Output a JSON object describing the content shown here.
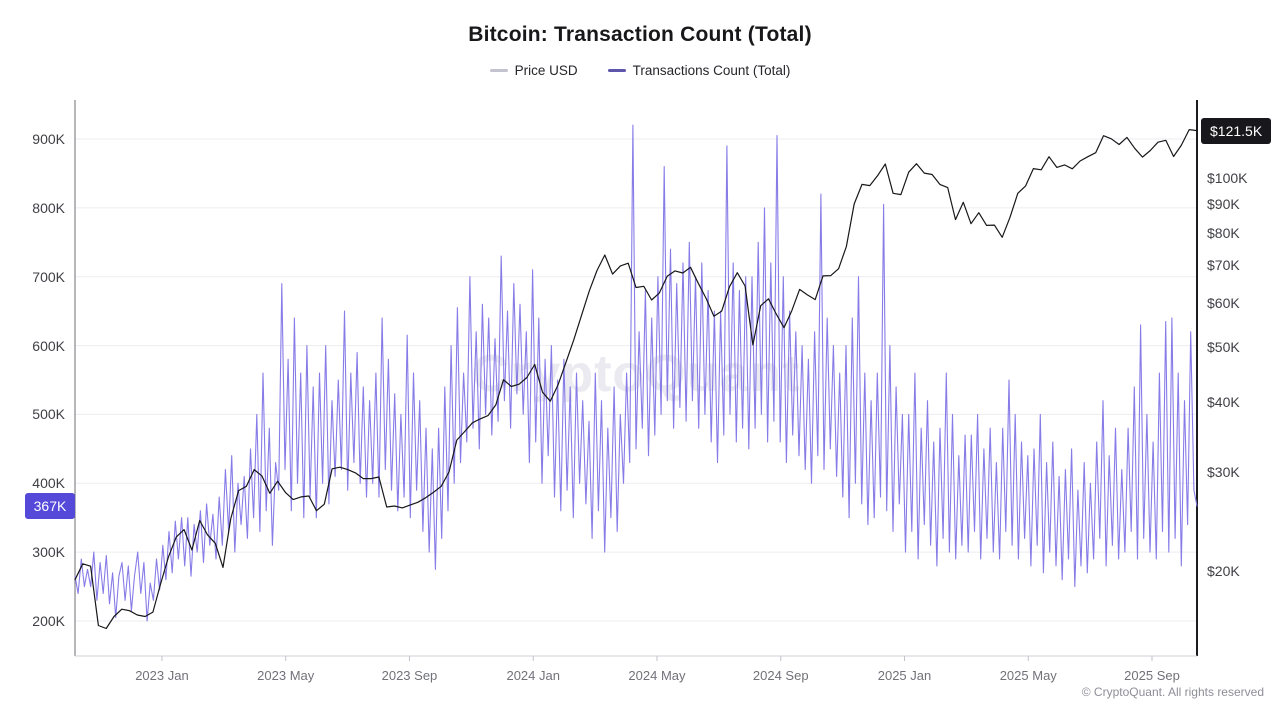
{
  "title": "Bitcoin: Transaction Count (Total)",
  "legend": {
    "items": [
      {
        "label": "Price USD",
        "color": "#c4c3d0"
      },
      {
        "label": "Transactions Count (Total)",
        "color": "#5e56aa"
      }
    ]
  },
  "watermark": "CryptoQuant",
  "footer": {
    "copyright": "© CryptoQuant. All rights reserved"
  },
  "badges": {
    "transactions_current": {
      "label": "367K",
      "bg": "#5449d8",
      "fg": "#ffffff"
    },
    "price_current": {
      "label": "$121.5K",
      "bg": "#17171c",
      "fg": "#ffffff"
    }
  },
  "chart_data": {
    "type": "line",
    "title": "Bitcoin: Transaction Count (Total)",
    "grid": "horizontal",
    "legend_position": "top",
    "x_axis": {
      "range": [
        "2022 Oct",
        "2025 Oct"
      ],
      "ticks": [
        {
          "label": "2023 Jan",
          "pos": 0.0775
        },
        {
          "label": "2023 May",
          "pos": 0.1878
        },
        {
          "label": "2023 Sep",
          "pos": 0.2981
        },
        {
          "label": "2024 Jan",
          "pos": 0.4084
        },
        {
          "label": "2024 May",
          "pos": 0.5187
        },
        {
          "label": "2024 Sep",
          "pos": 0.629
        },
        {
          "label": "2025 Jan",
          "pos": 0.7393
        },
        {
          "label": "2025 May",
          "pos": 0.8496
        },
        {
          "label": "2025 Sep",
          "pos": 0.9599
        }
      ]
    },
    "left_axis": {
      "name": "Transactions Count (Total)",
      "scale": "linear",
      "unit": "transactions",
      "tick_labels": [
        "200K",
        "300K",
        "400K",
        "500K",
        "600K",
        "700K",
        "800K",
        "900K"
      ],
      "tick_values_k": [
        200,
        300,
        400,
        500,
        600,
        700,
        800,
        900
      ]
    },
    "right_axis": {
      "name": "Price USD",
      "scale": "log",
      "unit": "USD",
      "tick_labels": [
        "$20K",
        "$30K",
        "$40K",
        "$50K",
        "$60K",
        "$70K",
        "$80K",
        "$90K",
        "$100K"
      ],
      "tick_values_usd_k": [
        20,
        30,
        40,
        50,
        60,
        70,
        80,
        90,
        100
      ]
    },
    "current_values": {
      "transactions_k": 367,
      "price_usd_k": 121.5
    },
    "series": [
      {
        "name": "Transactions Count (Total)",
        "axis": "left",
        "color": "#877ce7",
        "width": 1.1,
        "unit": "count (thousands)",
        "values": [
          265,
          240,
          290,
          250,
          275,
          250,
          300,
          230,
          285,
          240,
          295,
          225,
          270,
          205,
          265,
          285,
          230,
          280,
          215,
          265,
          300,
          240,
          285,
          200,
          255,
          230,
          290,
          245,
          310,
          260,
          330,
          270,
          345,
          290,
          350,
          280,
          350,
          265,
          340,
          300,
          360,
          285,
          370,
          310,
          355,
          290,
          380,
          310,
          420,
          330,
          440,
          300,
          400,
          340,
          410,
          320,
          450,
          350,
          500,
          330,
          560,
          360,
          480,
          310,
          430,
          390,
          690,
          420,
          580,
          360,
          640,
          400,
          560,
          350,
          600,
          380,
          540,
          350,
          560,
          400,
          600,
          370,
          520,
          410,
          550,
          420,
          650,
          390,
          560,
          430,
          590,
          400,
          540,
          380,
          520,
          400,
          560,
          380,
          640,
          420,
          580,
          390,
          530,
          360,
          500,
          380,
          615,
          350,
          560,
          390,
          520,
          330,
          480,
          300,
          450,
          275,
          480,
          320,
          540,
          360,
          600,
          400,
          655,
          430,
          560,
          460,
          700,
          480,
          620,
          450,
          660,
          500,
          640,
          470,
          610,
          490,
          730,
          520,
          650,
          480,
          690,
          530,
          660,
          500,
          620,
          430,
          710,
          460,
          640,
          400,
          580,
          440,
          600,
          380,
          550,
          360,
          580,
          390,
          540,
          350,
          560,
          400,
          520,
          370,
          490,
          320,
          560,
          360,
          520,
          300,
          480,
          350,
          540,
          330,
          500,
          400,
          560,
          430,
          920,
          450,
          620,
          480,
          680,
          440,
          640,
          470,
          700,
          500,
          860,
          520,
          740,
          480,
          690,
          510,
          720,
          490,
          750,
          520,
          700,
          480,
          720,
          500,
          680,
          460,
          650,
          430,
          650,
          470,
          890,
          500,
          720,
          460,
          680,
          480,
          700,
          450,
          700,
          480,
          750,
          500,
          800,
          460,
          720,
          490,
          905,
          460,
          700,
          430,
          650,
          470,
          620,
          440,
          600,
          420,
          580,
          400,
          620,
          440,
          820,
          420,
          640,
          450,
          600,
          410,
          560,
          380,
          600,
          350,
          640,
          400,
          700,
          370,
          560,
          340,
          520,
          350,
          560,
          380,
          805,
          360,
          600,
          330,
          540,
          370,
          500,
          300,
          500,
          330,
          560,
          290,
          480,
          340,
          520,
          310,
          460,
          280,
          480,
          320,
          560,
          300,
          500,
          290,
          440,
          310,
          470,
          300,
          470,
          330,
          500,
          290,
          450,
          320,
          480,
          300,
          430,
          290,
          480,
          330,
          550,
          310,
          500,
          290,
          460,
          320,
          440,
          280,
          450,
          310,
          500,
          270,
          430,
          300,
          460,
          280,
          410,
          260,
          420,
          290,
          450,
          250,
          390,
          280,
          430,
          270,
          400,
          290,
          460,
          320,
          520,
          280,
          440,
          310,
          480,
          290,
          420,
          300,
          480,
          330,
          540,
          290,
          630,
          320,
          500,
          300,
          460,
          290,
          560,
          330,
          635,
          300,
          640,
          320,
          560,
          280,
          520,
          340,
          620,
          390,
          367
        ]
      },
      {
        "name": "Price USD",
        "axis": "right",
        "color": "#18181b",
        "width": 1.2,
        "unit": "USD (thousands)",
        "values": [
          19.3,
          20.6,
          20.4,
          16.0,
          15.8,
          16.6,
          17.1,
          17.0,
          16.7,
          16.6,
          16.9,
          19.0,
          21.2,
          23.0,
          23.7,
          21.8,
          24.6,
          23.2,
          22.4,
          20.3,
          24.8,
          27.8,
          28.3,
          30.3,
          29.5,
          27.5,
          28.9,
          27.6,
          26.8,
          27.1,
          27.2,
          25.6,
          26.3,
          30.4,
          30.6,
          30.3,
          29.9,
          29.2,
          29.2,
          29.4,
          26.0,
          26.1,
          25.9,
          26.2,
          26.5,
          27.0,
          27.6,
          28.3,
          30.0,
          34.2,
          35.4,
          36.7,
          37.3,
          37.8,
          39.5,
          43.8,
          42.6,
          43.0,
          44.2,
          46.6,
          41.6,
          40.1,
          42.9,
          47.0,
          51.5,
          57.0,
          63.0,
          68.5,
          73.0,
          67.5,
          69.8,
          70.6,
          63.9,
          64.2,
          60.7,
          62.5,
          66.9,
          68.4,
          67.8,
          69.4,
          65.0,
          61.1,
          56.8,
          58.0,
          64.1,
          67.9,
          64.3,
          50.5,
          59.3,
          61.0,
          57.3,
          54.2,
          58.1,
          63.4,
          62.0,
          60.8,
          67.0,
          67.1,
          69.0,
          75.6,
          90.0,
          97.5,
          97.0,
          101.0,
          106.0,
          94.0,
          93.5,
          102.5,
          106.1,
          102.1,
          101.5,
          97.5,
          96.2,
          84.4,
          90.6,
          83.0,
          86.8,
          82.4,
          82.5,
          78.5,
          85.2,
          94.0,
          96.9,
          104.0,
          103.5,
          109.2,
          104.5,
          105.6,
          103.9,
          107.3,
          109.2,
          111.0,
          119.0,
          117.5,
          114.8,
          118.2,
          113.0,
          109.0,
          112.0,
          115.9,
          116.8,
          109.3,
          114.5,
          122.0,
          121.5
        ]
      }
    ]
  }
}
